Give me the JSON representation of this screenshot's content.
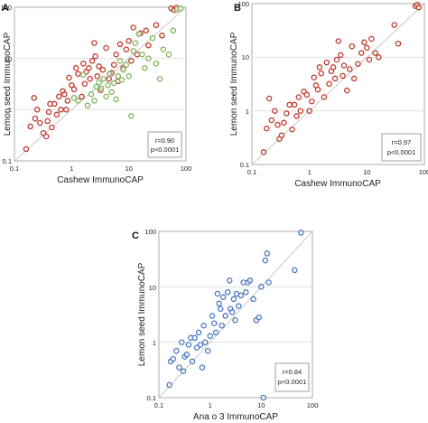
{
  "chart_data": [
    {
      "type": "scatter",
      "panel": "A",
      "xlabel": "Cashew ImmunoCAP",
      "ylabel": "Lemon seed ImmunoCAP",
      "xscale": "log",
      "yscale": "log",
      "xlim": [
        0.1,
        100
      ],
      "ylim": [
        0.1,
        100
      ],
      "x_ticks": [
        "0.1",
        "1",
        "10",
        "100"
      ],
      "y_ticks": [
        "0.1",
        "1",
        "10",
        "100"
      ],
      "identity_line": true,
      "stats": {
        "r": "r=0.90",
        "p": "p<0.0001"
      },
      "colors": {
        "red": "#c0392b",
        "green": "#7fb55a"
      },
      "series": [
        {
          "color": "#c0392b",
          "points": [
            [
              0.16,
              0.17
            ],
            [
              0.19,
              0.47
            ],
            [
              0.22,
              1.7
            ],
            [
              0.23,
              0.67
            ],
            [
              0.25,
              1.0
            ],
            [
              0.28,
              0.55
            ],
            [
              0.32,
              0.35
            ],
            [
              0.36,
              0.3
            ],
            [
              0.38,
              0.6
            ],
            [
              0.4,
              0.9
            ],
            [
              0.42,
              1.3
            ],
            [
              0.45,
              0.45
            ],
            [
              0.5,
              1.3
            ],
            [
              0.55,
              0.8
            ],
            [
              0.6,
              1.8
            ],
            [
              0.65,
              1.0
            ],
            [
              0.7,
              2.3
            ],
            [
              0.75,
              2.0
            ],
            [
              0.8,
              1.0
            ],
            [
              0.85,
              1.5
            ],
            [
              0.9,
              4.2
            ],
            [
              1.0,
              3.0
            ],
            [
              1.1,
              2.5
            ],
            [
              1.2,
              6.5
            ],
            [
              1.3,
              5.0
            ],
            [
              1.5,
              1.8
            ],
            [
              1.6,
              8.0
            ],
            [
              1.7,
              3.2
            ],
            [
              1.8,
              5.5
            ],
            [
              2.0,
              6.5
            ],
            [
              2.1,
              4.0
            ],
            [
              2.3,
              9.0
            ],
            [
              2.5,
              20
            ],
            [
              2.6,
              11
            ],
            [
              2.8,
              4.5
            ],
            [
              3.0,
              7.0
            ],
            [
              3.2,
              2.4
            ],
            [
              3.5,
              6.0
            ],
            [
              4.0,
              16
            ],
            [
              4.5,
              4.0
            ],
            [
              5.0,
              5.2
            ],
            [
              5.5,
              7.5
            ],
            [
              6.0,
              12
            ],
            [
              6.5,
              3.6
            ],
            [
              7.0,
              19
            ],
            [
              8.0,
              6.5
            ],
            [
              9.0,
              15
            ],
            [
              10,
              22
            ],
            [
              11,
              9
            ],
            [
              12,
              40
            ],
            [
              14,
              12
            ],
            [
              16,
              31
            ],
            [
              20,
              35
            ],
            [
              22,
              18
            ],
            [
              30,
              45
            ],
            [
              38,
              28
            ],
            [
              55,
              95
            ],
            [
              62,
              88
            ],
            [
              68,
              98
            ]
          ]
        },
        {
          "color": "#7fb55a",
          "points": [
            [
              1.1,
              1.7
            ],
            [
              1.3,
              1.5
            ],
            [
              1.6,
              4.8
            ],
            [
              1.9,
              1.2
            ],
            [
              2.2,
              2.0
            ],
            [
              2.5,
              1.5
            ],
            [
              2.7,
              2.8
            ],
            [
              3.0,
              3.4
            ],
            [
              3.3,
              2.6
            ],
            [
              3.6,
              4.0
            ],
            [
              4.0,
              1.8
            ],
            [
              4.3,
              3.0
            ],
            [
              4.6,
              5.0
            ],
            [
              5.0,
              2.2
            ],
            [
              5.5,
              3.3
            ],
            [
              6.0,
              1.6
            ],
            [
              6.5,
              4.5
            ],
            [
              7.0,
              9.0
            ],
            [
              7.5,
              3.8
            ],
            [
              8.0,
              6.0
            ],
            [
              9.0,
              7.5
            ],
            [
              10,
              4.5
            ],
            [
              11,
              0.75
            ],
            [
              12,
              14
            ],
            [
              13,
              20
            ],
            [
              15,
              30
            ],
            [
              17,
              12
            ],
            [
              19,
              6.5
            ],
            [
              22,
              10
            ],
            [
              26,
              25
            ],
            [
              30,
              8
            ],
            [
              35,
              4.0
            ],
            [
              40,
              15
            ],
            [
              50,
              12
            ],
            [
              60,
              35
            ],
            [
              70,
              90
            ],
            [
              80,
              95
            ]
          ]
        }
      ]
    },
    {
      "type": "scatter",
      "panel": "B",
      "xlabel": "Cashew ImmunoCAP",
      "ylabel": "Lemon seed ImmunoCAP",
      "xscale": "log",
      "yscale": "log",
      "xlim": [
        0.1,
        100
      ],
      "ylim": [
        0.1,
        100
      ],
      "x_ticks": [
        "0.1",
        "1",
        "10",
        "100"
      ],
      "y_ticks": [
        "0.1",
        "1",
        "10",
        "100"
      ],
      "identity_line": true,
      "stats": {
        "r": "r=0.97",
        "p": "p<0.0001"
      },
      "series": [
        {
          "color": "#c0392b",
          "points": [
            [
              0.16,
              0.17
            ],
            [
              0.18,
              0.47
            ],
            [
              0.2,
              1.7
            ],
            [
              0.22,
              0.67
            ],
            [
              0.25,
              1.0
            ],
            [
              0.28,
              0.55
            ],
            [
              0.3,
              0.3
            ],
            [
              0.33,
              0.35
            ],
            [
              0.36,
              0.6
            ],
            [
              0.4,
              0.9
            ],
            [
              0.45,
              1.3
            ],
            [
              0.5,
              0.45
            ],
            [
              0.55,
              1.3
            ],
            [
              0.6,
              0.8
            ],
            [
              0.65,
              1.8
            ],
            [
              0.7,
              1.0
            ],
            [
              0.8,
              2.3
            ],
            [
              0.9,
              2.0
            ],
            [
              1.0,
              1.0
            ],
            [
              1.1,
              1.5
            ],
            [
              1.2,
              4.2
            ],
            [
              1.3,
              3.0
            ],
            [
              1.4,
              2.5
            ],
            [
              1.5,
              6.5
            ],
            [
              1.6,
              5.0
            ],
            [
              1.8,
              1.8
            ],
            [
              2.0,
              8.0
            ],
            [
              2.2,
              3.2
            ],
            [
              2.4,
              5.5
            ],
            [
              2.6,
              6.5
            ],
            [
              2.8,
              4.0
            ],
            [
              3.0,
              9.0
            ],
            [
              3.2,
              20
            ],
            [
              3.5,
              11
            ],
            [
              3.8,
              4.5
            ],
            [
              4.0,
              7.0
            ],
            [
              4.5,
              2.4
            ],
            [
              5.0,
              6.0
            ],
            [
              5.5,
              16
            ],
            [
              6.0,
              4.0
            ],
            [
              7.0,
              7.5
            ],
            [
              8.0,
              12
            ],
            [
              9.0,
              19
            ],
            [
              10,
              15
            ],
            [
              11,
              9
            ],
            [
              12,
              22
            ],
            [
              14,
              12
            ],
            [
              16,
              10
            ],
            [
              30,
              40
            ],
            [
              35,
              18
            ],
            [
              70,
              90
            ],
            [
              75,
              95
            ],
            [
              80,
              85
            ]
          ]
        }
      ]
    },
    {
      "type": "scatter",
      "panel": "C",
      "xlabel": "Ana o 3 ImmunoCAP",
      "ylabel": "Lemon seed ImmunoCAP",
      "xscale": "log",
      "yscale": "log",
      "xlim": [
        0.1,
        100
      ],
      "ylim": [
        0.1,
        100
      ],
      "x_ticks": [
        "0.1",
        "1",
        "10",
        "100"
      ],
      "y_ticks": [
        "0.1",
        "1",
        "10",
        "100"
      ],
      "identity_line": true,
      "stats": {
        "r": "r=0.84",
        "p": "p<0.0001"
      },
      "series": [
        {
          "color": "#4a78c2",
          "points": [
            [
              0.16,
              0.17
            ],
            [
              0.17,
              0.45
            ],
            [
              0.19,
              0.5
            ],
            [
              0.22,
              0.7
            ],
            [
              0.25,
              0.35
            ],
            [
              0.28,
              1.0
            ],
            [
              0.3,
              0.3
            ],
            [
              0.32,
              0.55
            ],
            [
              0.35,
              0.6
            ],
            [
              0.38,
              0.9
            ],
            [
              0.42,
              1.2
            ],
            [
              0.45,
              0.45
            ],
            [
              0.5,
              1.2
            ],
            [
              0.55,
              0.8
            ],
            [
              0.6,
              1.5
            ],
            [
              0.65,
              0.9
            ],
            [
              0.7,
              0.35
            ],
            [
              0.75,
              2.0
            ],
            [
              0.8,
              1.0
            ],
            [
              0.9,
              0.7
            ],
            [
              1.0,
              1.3
            ],
            [
              1.1,
              3.0
            ],
            [
              1.2,
              2.2
            ],
            [
              1.3,
              1.5
            ],
            [
              1.4,
              7.5
            ],
            [
              1.5,
              5.0
            ],
            [
              1.6,
              4.0
            ],
            [
              1.7,
              2.0
            ],
            [
              1.8,
              6.5
            ],
            [
              2.0,
              3.0
            ],
            [
              2.2,
              8.0
            ],
            [
              2.4,
              13
            ],
            [
              2.5,
              4.0
            ],
            [
              2.7,
              3.5
            ],
            [
              2.9,
              6.0
            ],
            [
              3.1,
              2.5
            ],
            [
              3.3,
              7.5
            ],
            [
              3.6,
              4.5
            ],
            [
              4.0,
              7.0
            ],
            [
              4.5,
              12
            ],
            [
              5.0,
              8.0
            ],
            [
              5.5,
              12
            ],
            [
              6.0,
              13
            ],
            [
              7.0,
              6.0
            ],
            [
              8.0,
              2.5
            ],
            [
              9.0,
              2.8
            ],
            [
              10,
              10
            ],
            [
              11,
              0.1
            ],
            [
              12,
              30
            ],
            [
              13,
              40
            ],
            [
              14,
              12
            ],
            [
              45,
              20
            ],
            [
              60,
              95
            ]
          ]
        }
      ]
    }
  ]
}
